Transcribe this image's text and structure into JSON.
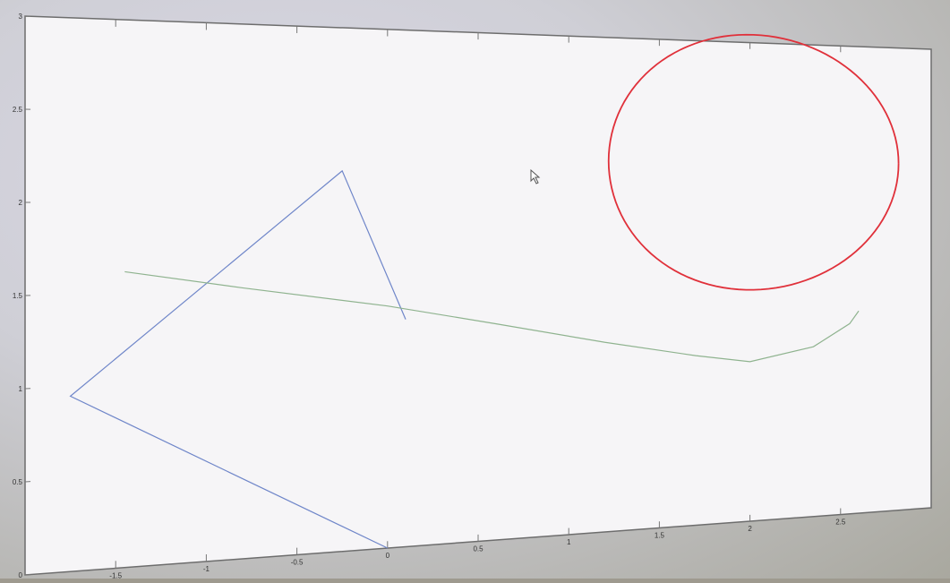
{
  "chart_data": {
    "type": "line",
    "title": "",
    "xlabel": "",
    "ylabel": "",
    "xlim": [
      -2,
      3
    ],
    "ylim": [
      0,
      3
    ],
    "x_ticks": [
      -1.5,
      -1,
      -0.5,
      0,
      0.5,
      1,
      1.5,
      2,
      2.5
    ],
    "y_ticks": [
      0,
      0.5,
      1,
      1.5,
      2,
      2.5,
      3
    ],
    "x_tick_labels": [
      "-1.5",
      "-1",
      "-0.5",
      "0",
      "0.5",
      "1",
      "1.5",
      "2",
      "2.5"
    ],
    "y_tick_labels": [
      "0",
      "0.5",
      "1",
      "1.5",
      "2",
      "2.5",
      "3"
    ],
    "grid": false,
    "series": [
      {
        "kind": "polyline",
        "color": "#6f86c9",
        "points": [
          [
            0.1,
            1.32
          ],
          [
            -0.25,
            2.18
          ],
          [
            -1.75,
            0.95
          ],
          [
            0.0,
            0.0
          ]
        ]
      },
      {
        "kind": "polyline",
        "color": "#8fb38f",
        "points": [
          [
            -1.45,
            1.62
          ],
          [
            -0.8,
            1.52
          ],
          [
            0.0,
            1.4
          ],
          [
            0.6,
            1.28
          ],
          [
            1.2,
            1.15
          ],
          [
            1.7,
            1.05
          ],
          [
            2.0,
            1.0
          ],
          [
            2.35,
            1.08
          ],
          [
            2.55,
            1.22
          ],
          [
            2.6,
            1.3
          ]
        ]
      },
      {
        "kind": "circle",
        "color": "#e0303a",
        "center": [
          2.02,
          2.25
        ],
        "radius": 0.8
      }
    ]
  }
}
